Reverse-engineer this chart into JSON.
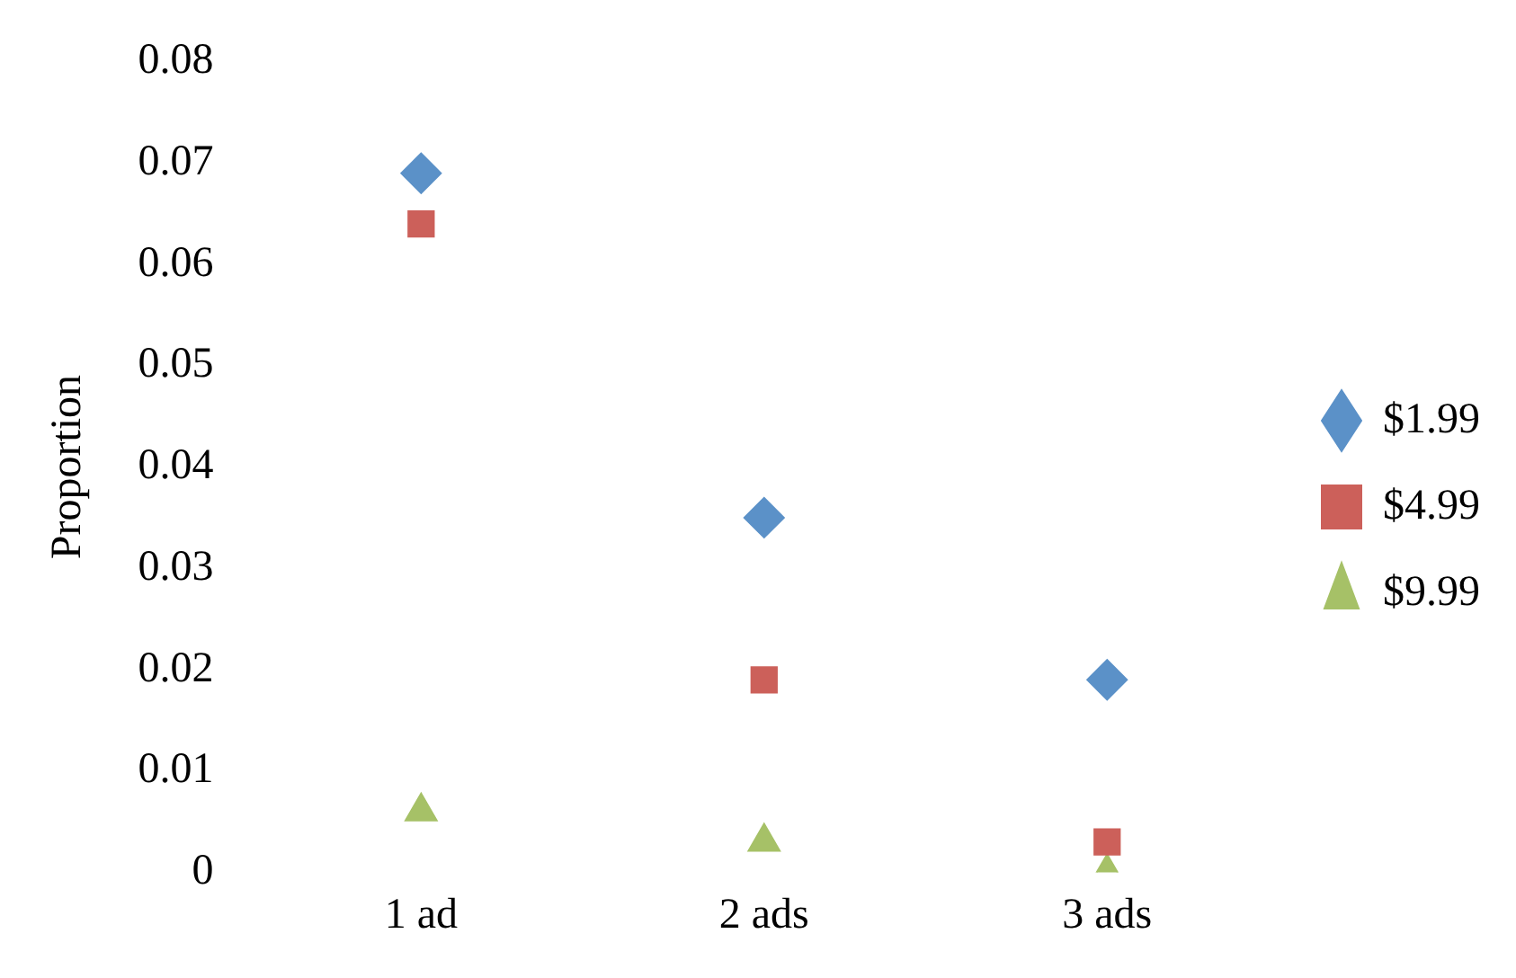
{
  "chart_data": {
    "type": "scatter",
    "ylabel": "Proportion",
    "categories": [
      "1 ad",
      "2 ads",
      "3 ads"
    ],
    "series": [
      {
        "name": "$1.99",
        "color": "#5b91c8",
        "marker": "diamond",
        "values": [
          0.069,
          0.035,
          0.019
        ]
      },
      {
        "name": "$4.99",
        "color": "#cc605a",
        "marker": "square",
        "values": [
          0.064,
          0.019,
          0.003
        ]
      },
      {
        "name": "$9.99",
        "color": "#a6c167",
        "marker": "triangle",
        "values": [
          0.006,
          0.003,
          0.0
        ]
      }
    ],
    "ylim": [
      0,
      0.08
    ],
    "yticks": [
      0,
      0.01,
      0.02,
      0.03,
      0.04,
      0.05,
      0.06,
      0.07,
      0.08
    ],
    "grid": false,
    "legend": "right"
  }
}
